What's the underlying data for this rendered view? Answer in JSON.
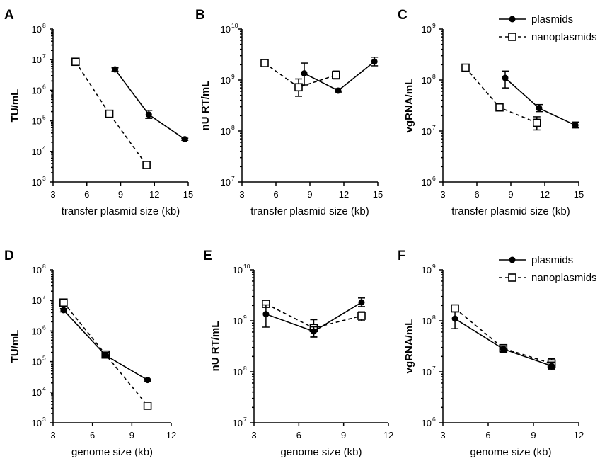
{
  "chart_data": [
    {
      "type": "line",
      "panel_label": "A",
      "xlabel": "transfer plasmid size (kb)",
      "ylabel": "TU/mL",
      "xlim": [
        3,
        15
      ],
      "xticks": [
        3,
        6,
        9,
        12,
        15
      ],
      "ylim": [
        1000,
        100000000
      ],
      "yscale": "log",
      "yticks_exp": [
        3,
        4,
        5,
        6,
        7,
        8
      ],
      "series": [
        {
          "name": "plasmids",
          "marker": "filled-circle",
          "linestyle": "solid",
          "x": [
            8.5,
            11.5,
            14.7
          ],
          "y": [
            4800000,
            160000,
            25000
          ],
          "err_low": [
            4200000,
            120000,
            23000
          ],
          "err_high": [
            5400000,
            220000,
            27000
          ]
        },
        {
          "name": "nanoplasmids",
          "marker": "open-square",
          "linestyle": "dashed",
          "x": [
            5.0,
            8.0,
            11.3
          ],
          "y": [
            8500000,
            170000,
            3600
          ],
          "err_low": [
            7800000,
            150000,
            3200
          ],
          "err_high": [
            9200000,
            190000,
            4000
          ]
        }
      ]
    },
    {
      "type": "line",
      "panel_label": "B",
      "xlabel": "transfer plasmid size (kb)",
      "ylabel": "nU RT/mL",
      "xlim": [
        3,
        15
      ],
      "xticks": [
        3,
        6,
        9,
        12,
        15
      ],
      "ylim": [
        10000000,
        10000000000
      ],
      "yscale": "log",
      "yticks_exp": [
        7,
        8,
        9,
        10
      ],
      "series": [
        {
          "name": "plasmids",
          "marker": "filled-circle",
          "linestyle": "solid",
          "x": [
            8.5,
            11.5,
            14.7
          ],
          "y": [
            1350000000,
            620000000,
            2300000000
          ],
          "err_low": [
            800000000,
            580000000,
            1900000000
          ],
          "err_high": [
            2150000000,
            680000000,
            2800000000
          ]
        },
        {
          "name": "nanoplasmids",
          "marker": "open-square",
          "linestyle": "dashed",
          "x": [
            5.0,
            8.0,
            11.3
          ],
          "y": [
            2150000000,
            720000000,
            1250000000
          ],
          "err_low": [
            1850000000,
            480000000,
            1050000000
          ],
          "err_high": [
            2500000000,
            1050000000,
            1500000000
          ]
        }
      ]
    },
    {
      "type": "line",
      "panel_label": "C",
      "xlabel": "transfer plasmid size (kb)",
      "ylabel": "vgRNA/mL",
      "xlim": [
        3,
        15
      ],
      "xticks": [
        3,
        6,
        9,
        12,
        15
      ],
      "ylim": [
        1000000,
        1000000000
      ],
      "yscale": "log",
      "yticks_exp": [
        6,
        7,
        8,
        9
      ],
      "series": [
        {
          "name": "plasmids",
          "marker": "filled-circle",
          "linestyle": "solid",
          "x": [
            8.5,
            11.5,
            14.7
          ],
          "y": [
            110000000,
            28000000,
            13000000
          ],
          "err_low": [
            70000000,
            24000000,
            11500000
          ],
          "err_high": [
            150000000,
            33000000,
            15000000
          ]
        },
        {
          "name": "nanoplasmids",
          "marker": "open-square",
          "linestyle": "dashed",
          "x": [
            5.0,
            8.0,
            11.3
          ],
          "y": [
            175000000,
            29000000,
            14500000
          ],
          "err_low": [
            165000000,
            25000000,
            10500000
          ],
          "err_high": [
            185000000,
            34000000,
            19000000
          ]
        }
      ]
    },
    {
      "type": "line",
      "panel_label": "D",
      "xlabel": "genome size (kb)",
      "ylabel": "TU/mL",
      "xlim": [
        3,
        12
      ],
      "xticks": [
        3,
        6,
        9,
        12
      ],
      "ylim": [
        1000,
        100000000
      ],
      "yscale": "log",
      "yticks_exp": [
        3,
        4,
        5,
        6,
        7,
        8
      ],
      "series": [
        {
          "name": "plasmids",
          "marker": "filled-circle",
          "linestyle": "solid",
          "x": [
            3.8,
            7.0,
            10.2
          ],
          "y": [
            4800000,
            160000,
            25000
          ],
          "err_low": [
            4200000,
            130000,
            23000
          ],
          "err_high": [
            5400000,
            200000,
            27000
          ]
        },
        {
          "name": "nanoplasmids",
          "marker": "open-square",
          "linestyle": "dashed",
          "x": [
            3.8,
            7.0,
            10.2
          ],
          "y": [
            8500000,
            170000,
            3600
          ],
          "err_low": [
            7800000,
            150000,
            3200
          ],
          "err_high": [
            9200000,
            190000,
            4000
          ]
        }
      ]
    },
    {
      "type": "line",
      "panel_label": "E",
      "xlabel": "genome size (kb)",
      "ylabel": "nU RT/mL",
      "xlim": [
        3,
        12
      ],
      "xticks": [
        3,
        6,
        9,
        12
      ],
      "ylim": [
        10000000,
        10000000000
      ],
      "yscale": "log",
      "yticks_exp": [
        7,
        8,
        9,
        10
      ],
      "series": [
        {
          "name": "plasmids",
          "marker": "filled-circle",
          "linestyle": "solid",
          "x": [
            3.8,
            7.0,
            10.2
          ],
          "y": [
            1350000000,
            620000000,
            2300000000
          ],
          "err_low": [
            750000000,
            480000000,
            1900000000
          ],
          "err_high": [
            2050000000,
            760000000,
            2800000000
          ]
        },
        {
          "name": "nanoplasmids",
          "marker": "open-square",
          "linestyle": "dashed",
          "x": [
            3.8,
            7.0,
            10.2
          ],
          "y": [
            2150000000,
            720000000,
            1250000000
          ],
          "err_low": [
            1850000000,
            480000000,
            1000000000
          ],
          "err_high": [
            2500000000,
            1050000000,
            1500000000
          ]
        }
      ]
    },
    {
      "type": "line",
      "panel_label": "F",
      "xlabel": "genome size (kb)",
      "ylabel": "vgRNA/mL",
      "xlim": [
        3,
        12
      ],
      "xticks": [
        3,
        6,
        9,
        12
      ],
      "ylim": [
        1000000,
        1000000000
      ],
      "yscale": "log",
      "yticks_exp": [
        6,
        7,
        8,
        9
      ],
      "series": [
        {
          "name": "plasmids",
          "marker": "filled-circle",
          "linestyle": "solid",
          "x": [
            3.8,
            7.0,
            10.2
          ],
          "y": [
            110000000,
            28000000,
            13000000
          ],
          "err_low": [
            70000000,
            24000000,
            11000000
          ],
          "err_high": [
            150000000,
            32000000,
            15500000
          ]
        },
        {
          "name": "nanoplasmids",
          "marker": "open-square",
          "linestyle": "dashed",
          "x": [
            3.8,
            7.0,
            10.2
          ],
          "y": [
            175000000,
            29000000,
            14500000
          ],
          "err_low": [
            165000000,
            25000000,
            11500000
          ],
          "err_high": [
            185000000,
            33000000,
            18000000
          ]
        }
      ]
    }
  ],
  "legend": {
    "entries": [
      {
        "label": "plasmids",
        "marker": "filled-circle",
        "linestyle": "solid"
      },
      {
        "label": "nanoplasmids",
        "marker": "open-square",
        "linestyle": "dashed"
      }
    ],
    "shown_in_panels": [
      "C",
      "F"
    ],
    "placement": "top-right"
  }
}
